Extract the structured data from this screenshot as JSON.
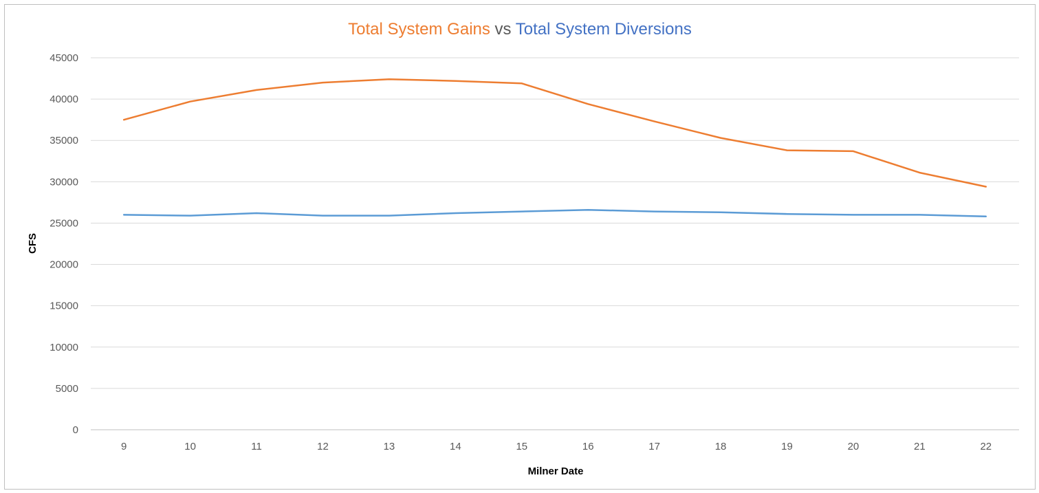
{
  "chart_data": {
    "type": "line",
    "title_parts": [
      {
        "text": "Total System Gains",
        "color": "#ED7D31"
      },
      {
        "text": " vs ",
        "color": "#595959"
      },
      {
        "text": "Total System Diversions",
        "color": "#4472C4"
      }
    ],
    "xlabel": "Milner Date",
    "ylabel": "CFS",
    "x": [
      9,
      10,
      11,
      12,
      13,
      14,
      15,
      16,
      17,
      18,
      19,
      20,
      21,
      22
    ],
    "ylim": [
      0,
      45000
    ],
    "yticks": [
      0,
      5000,
      10000,
      15000,
      20000,
      25000,
      30000,
      35000,
      40000,
      45000
    ],
    "grid": true,
    "series": [
      {
        "color": "#ED7D31",
        "values": [
          37500,
          39700,
          41100,
          42000,
          42400,
          42200,
          41900,
          39400,
          37300,
          35300,
          33800,
          33700,
          31100,
          29400
        ]
      },
      {
        "color": "#5B9BD5",
        "values": [
          26000,
          25900,
          26200,
          25900,
          25900,
          26200,
          26400,
          26600,
          26400,
          26300,
          26100,
          26000,
          26000,
          25800
        ]
      }
    ]
  }
}
